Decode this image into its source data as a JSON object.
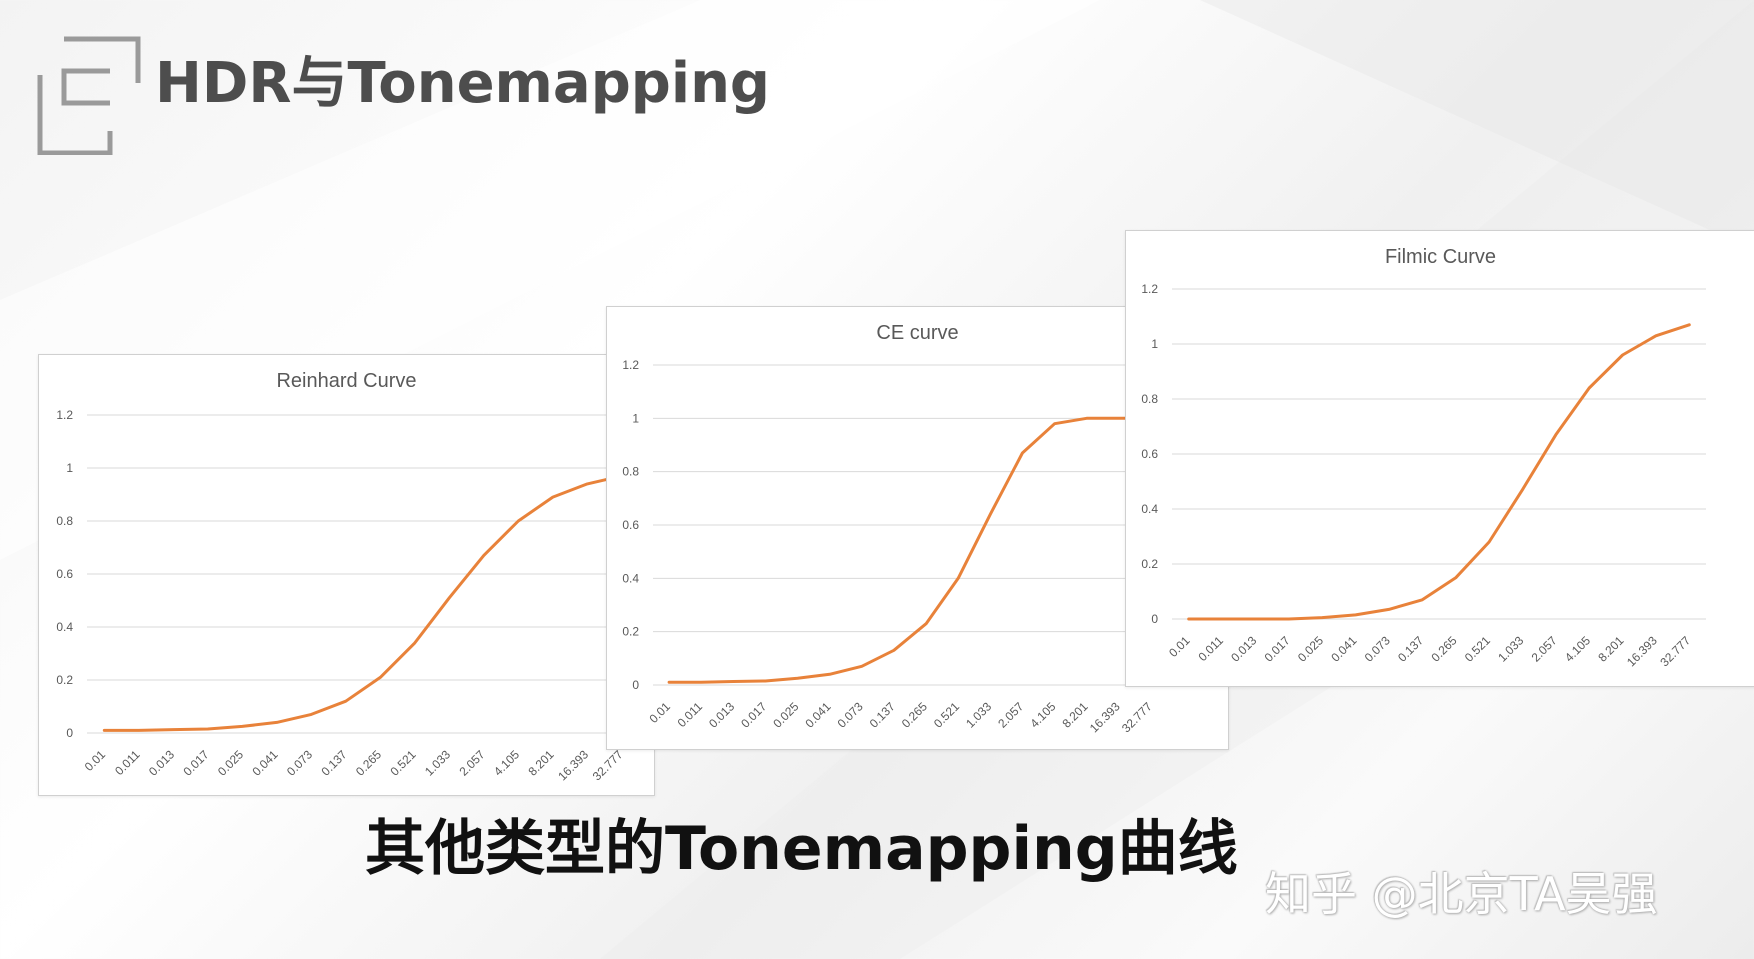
{
  "page": {
    "title": "HDR与Tonemapping",
    "subtitle": "其他类型的Tonemapping曲线",
    "watermark": "知乎 @北京TA吴强"
  },
  "colors": {
    "line": "#E8823A",
    "grid": "#d9d9d9",
    "axis_text": "#595959",
    "title_text": "#595959"
  },
  "chart_data": [
    {
      "type": "line",
      "title": "Reinhard Curve",
      "categories": [
        "0.01",
        "0.011",
        "0.013",
        "0.017",
        "0.025",
        "0.041",
        "0.073",
        "0.137",
        "0.265",
        "0.521",
        "1.033",
        "2.057",
        "4.105",
        "8.201",
        "16.393",
        "32.777"
      ],
      "series": [
        {
          "values": [
            0.01,
            0.01,
            0.013,
            0.015,
            0.025,
            0.04,
            0.07,
            0.12,
            0.21,
            0.34,
            0.51,
            0.67,
            0.8,
            0.89,
            0.94,
            0.97
          ]
        }
      ],
      "ylim": [
        0,
        1.2
      ],
      "yticks": [
        "0",
        "0.2",
        "0.4",
        "0.6",
        "0.8",
        "1",
        "1.2"
      ],
      "grid": true
    },
    {
      "type": "line",
      "title": "CE curve",
      "categories": [
        "0.01",
        "0.011",
        "0.013",
        "0.017",
        "0.025",
        "0.041",
        "0.073",
        "0.137",
        "0.265",
        "0.521",
        "1.033",
        "2.057",
        "4.105",
        "8.201",
        "16.393",
        "32.777"
      ],
      "series": [
        {
          "values": [
            0.01,
            0.01,
            0.013,
            0.015,
            0.025,
            0.04,
            0.07,
            0.13,
            0.23,
            0.4,
            0.64,
            0.87,
            0.98,
            1.0,
            1.0,
            1.0
          ]
        }
      ],
      "ylim": [
        0,
        1.2
      ],
      "yticks": [
        "0",
        "0.2",
        "0.4",
        "0.6",
        "0.8",
        "1",
        "1.2"
      ],
      "grid": true
    },
    {
      "type": "line",
      "title": "Filmic Curve",
      "categories": [
        "0.01",
        "0.011",
        "0.013",
        "0.017",
        "0.025",
        "0.041",
        "0.073",
        "0.137",
        "0.265",
        "0.521",
        "1.033",
        "2.057",
        "4.105",
        "8.201",
        "16.393",
        "32.777"
      ],
      "series": [
        {
          "values": [
            0.0,
            0.0,
            0.0,
            0.0,
            0.005,
            0.015,
            0.035,
            0.07,
            0.15,
            0.28,
            0.47,
            0.67,
            0.84,
            0.96,
            1.03,
            1.07
          ]
        }
      ],
      "ylim": [
        0,
        1.2
      ],
      "yticks": [
        "0",
        "0.2",
        "0.4",
        "0.6",
        "0.8",
        "1",
        "1.2"
      ],
      "grid": true
    }
  ]
}
